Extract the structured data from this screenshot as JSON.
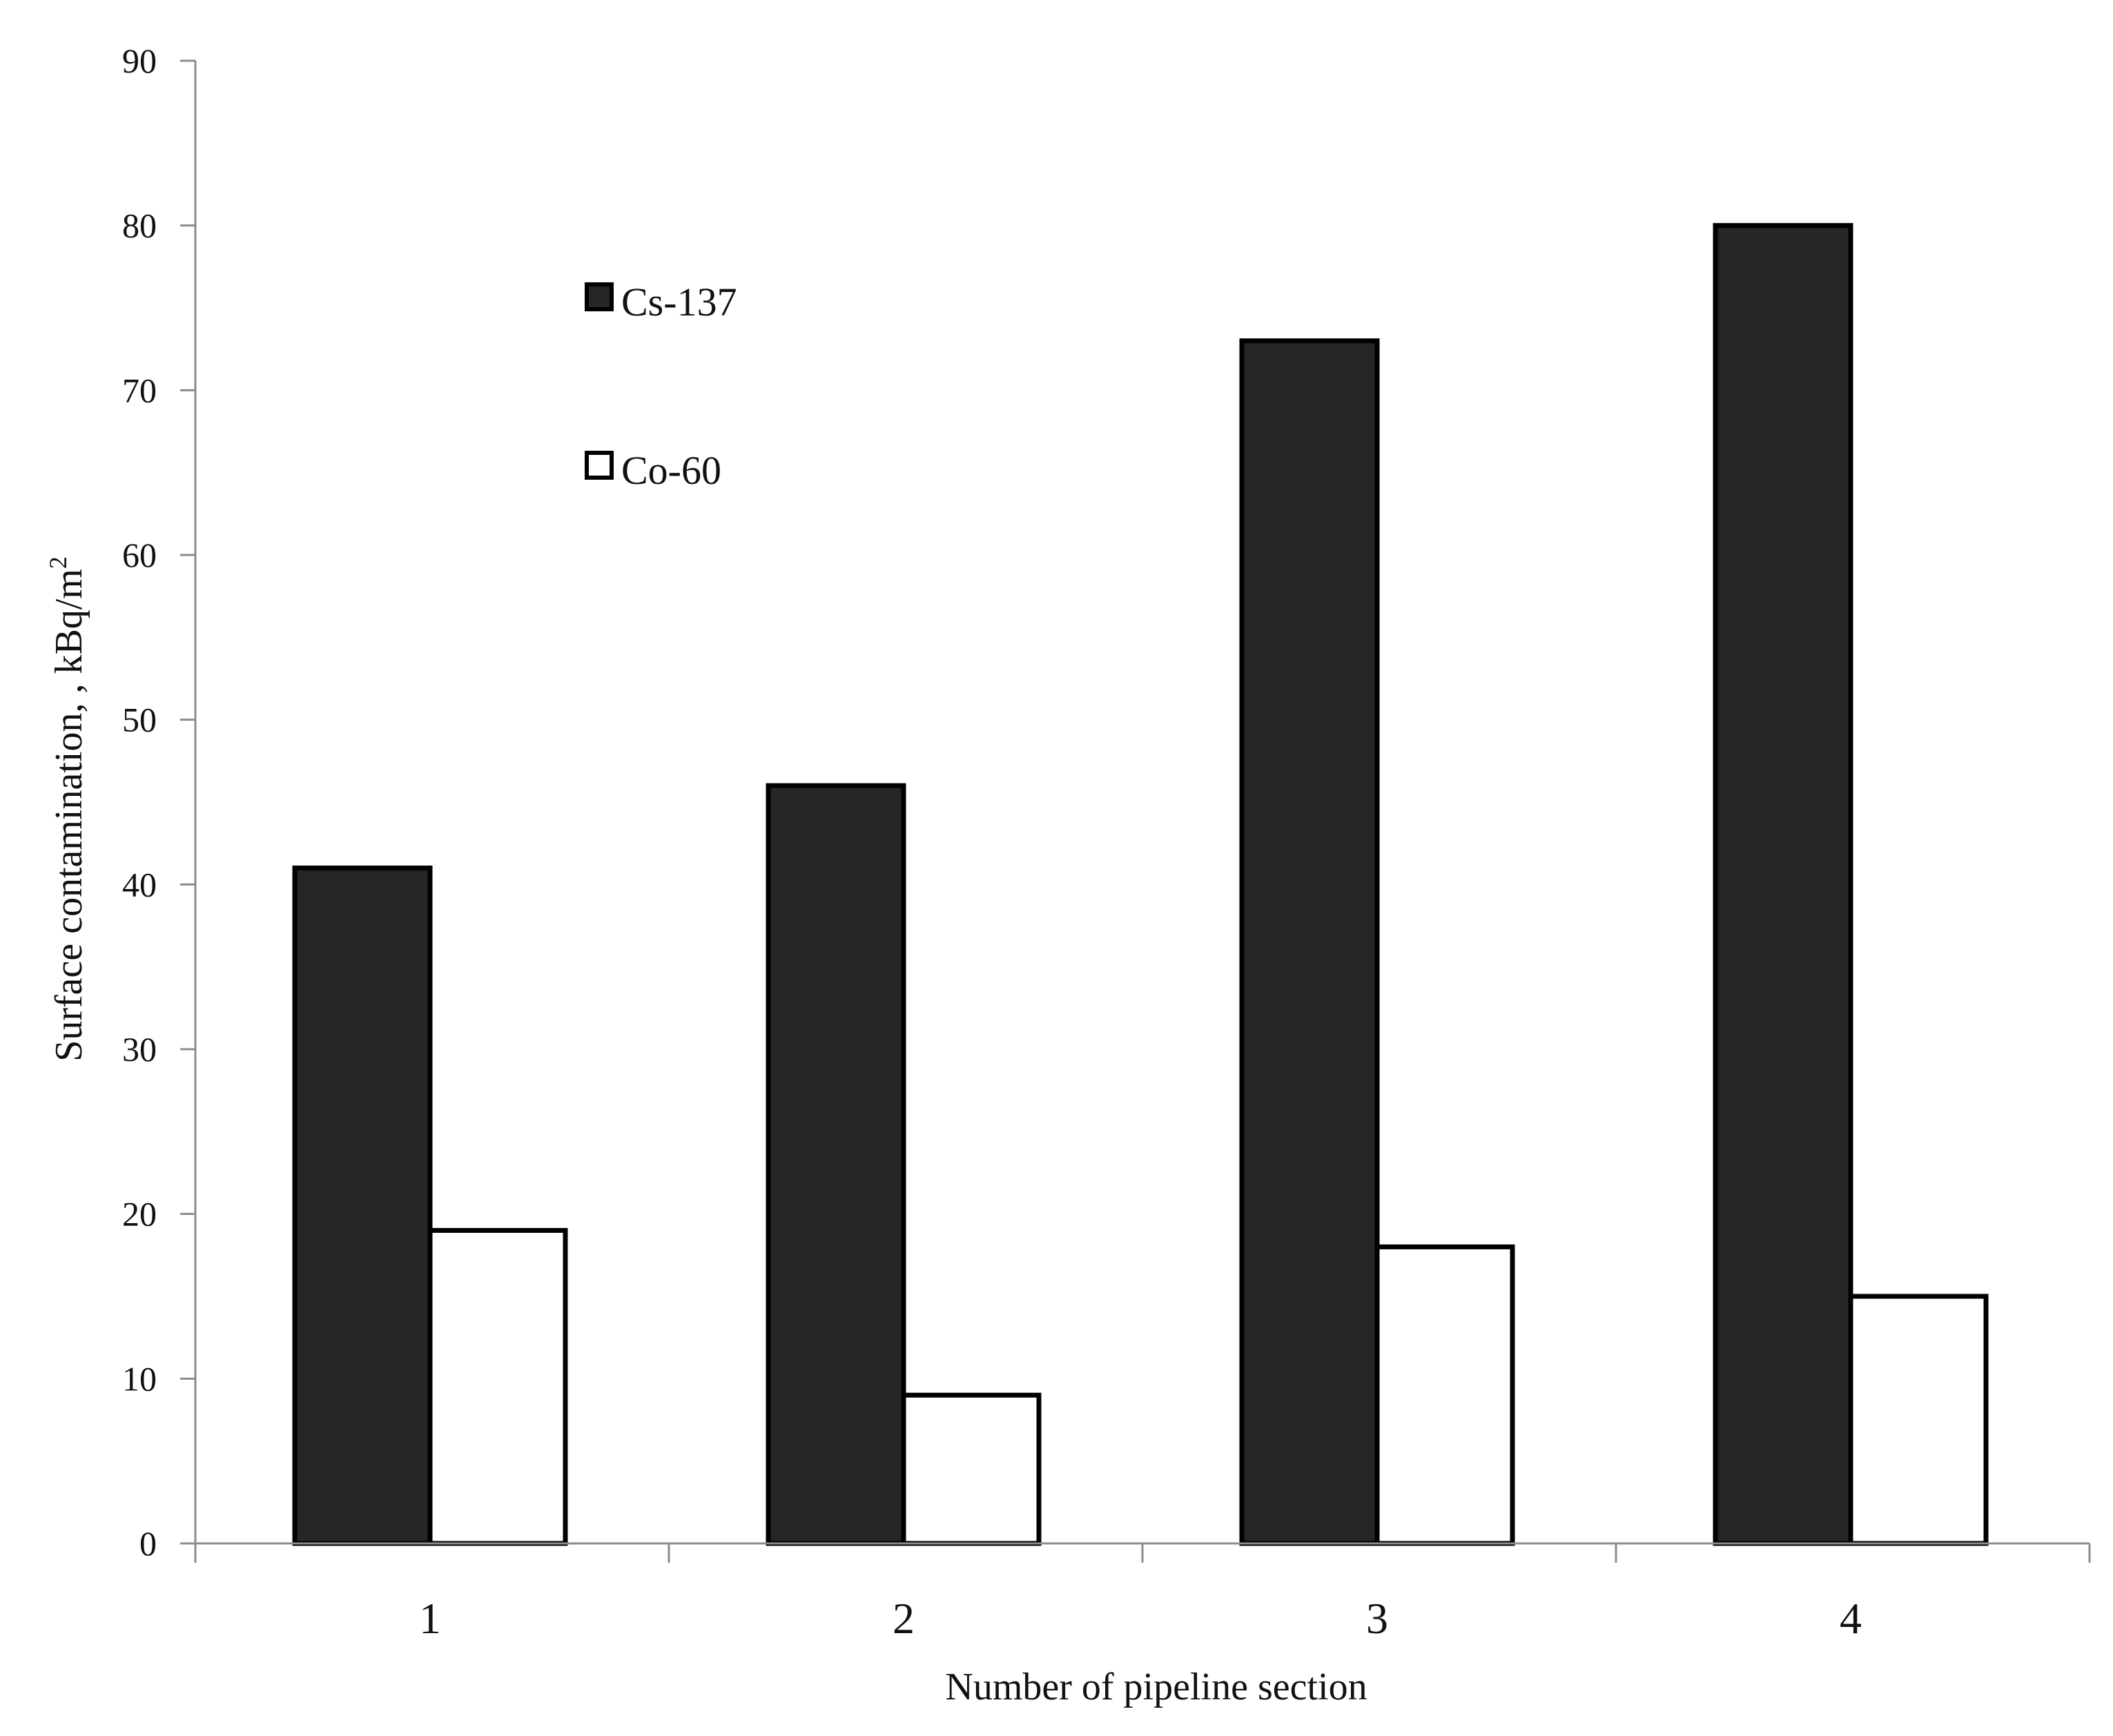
{
  "chart_data": {
    "type": "bar",
    "categories": [
      "1",
      "2",
      "3",
      "4"
    ],
    "series": [
      {
        "name": "Cs-137",
        "values": [
          41,
          46,
          73,
          80
        ],
        "color": "#262626"
      },
      {
        "name": "Co-60",
        "values": [
          19,
          9,
          18,
          15
        ],
        "color": "#ffffff"
      }
    ],
    "xlabel": "Number of pipeline section",
    "ylabel_main": "Surface contamination, , kBq/m",
    "ylabel_superscript": "2",
    "ylim": [
      0,
      90
    ],
    "yticks": [
      "0",
      "10",
      "20",
      "30",
      "40",
      "50",
      "60",
      "70",
      "80",
      "90"
    ],
    "grid": false,
    "legend_position": "top-left"
  }
}
